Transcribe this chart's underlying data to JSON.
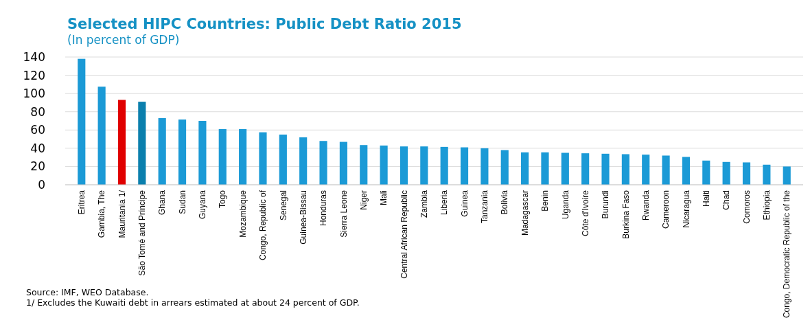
{
  "chart_data": {
    "type": "bar",
    "title": "Selected HIPC Countries: Public Debt Ratio 2015",
    "subtitle": "(In percent of GDP)",
    "categories": [
      "Eritrea",
      "Gambia, The",
      "Mauritania 1/",
      "São Tomé and Príncipe",
      "Ghana",
      "Sudan",
      "Guyana",
      "Togo",
      "Mozambique",
      "Congo, Republic of",
      "Senegal",
      "Guinea-Bissau",
      "Honduras",
      "Sierra Leone",
      "Niger",
      "Mali",
      "Central African Republic",
      "Zambia",
      "Liberia",
      "Guinea",
      "Tanzania",
      "Bolivia",
      "Madagascar",
      "Benin",
      "Uganda",
      "Côte d'Ivoire",
      "Burundi",
      "Burkina Faso",
      "Rwanda",
      "Cameroon",
      "Nicaragua",
      "Haiti",
      "Chad",
      "Comoros",
      "Ethiopia",
      "Congo, Democratic Republic of the"
    ],
    "values": [
      138,
      107.5,
      93,
      91,
      73,
      71.5,
      70,
      61,
      61,
      57.5,
      55,
      52,
      48,
      47,
      43.5,
      43,
      42,
      42,
      41.5,
      41,
      40,
      38,
      35.5,
      35.5,
      35,
      34.5,
      34,
      33.5,
      33,
      32,
      30.5,
      26.5,
      25,
      24.5,
      22,
      20
    ],
    "colors": [
      "#1b9ad6",
      "#1b9ad6",
      "#e00000",
      "#0a7fad",
      "#1b9ad6",
      "#1b9ad6",
      "#1b9ad6",
      "#1b9ad6",
      "#1b9ad6",
      "#1b9ad6",
      "#1b9ad6",
      "#1b9ad6",
      "#1b9ad6",
      "#1b9ad6",
      "#1b9ad6",
      "#1b9ad6",
      "#1b9ad6",
      "#1b9ad6",
      "#1b9ad6",
      "#1b9ad6",
      "#1b9ad6",
      "#1b9ad6",
      "#1b9ad6",
      "#1b9ad6",
      "#1b9ad6",
      "#1b9ad6",
      "#1b9ad6",
      "#1b9ad6",
      "#1b9ad6",
      "#1b9ad6",
      "#1b9ad6",
      "#1b9ad6",
      "#1b9ad6",
      "#1b9ad6",
      "#1b9ad6",
      "#1b9ad6"
    ],
    "ylim": [
      0,
      140
    ],
    "yticks": [
      0,
      20,
      40,
      60,
      80,
      100,
      120,
      140
    ],
    "grid": "y",
    "annotations": [
      "Source: IMF, WEO Database.",
      "1/ Excludes the Kuwaiti debt in arrears estimated at about 24 percent of GDP."
    ]
  }
}
